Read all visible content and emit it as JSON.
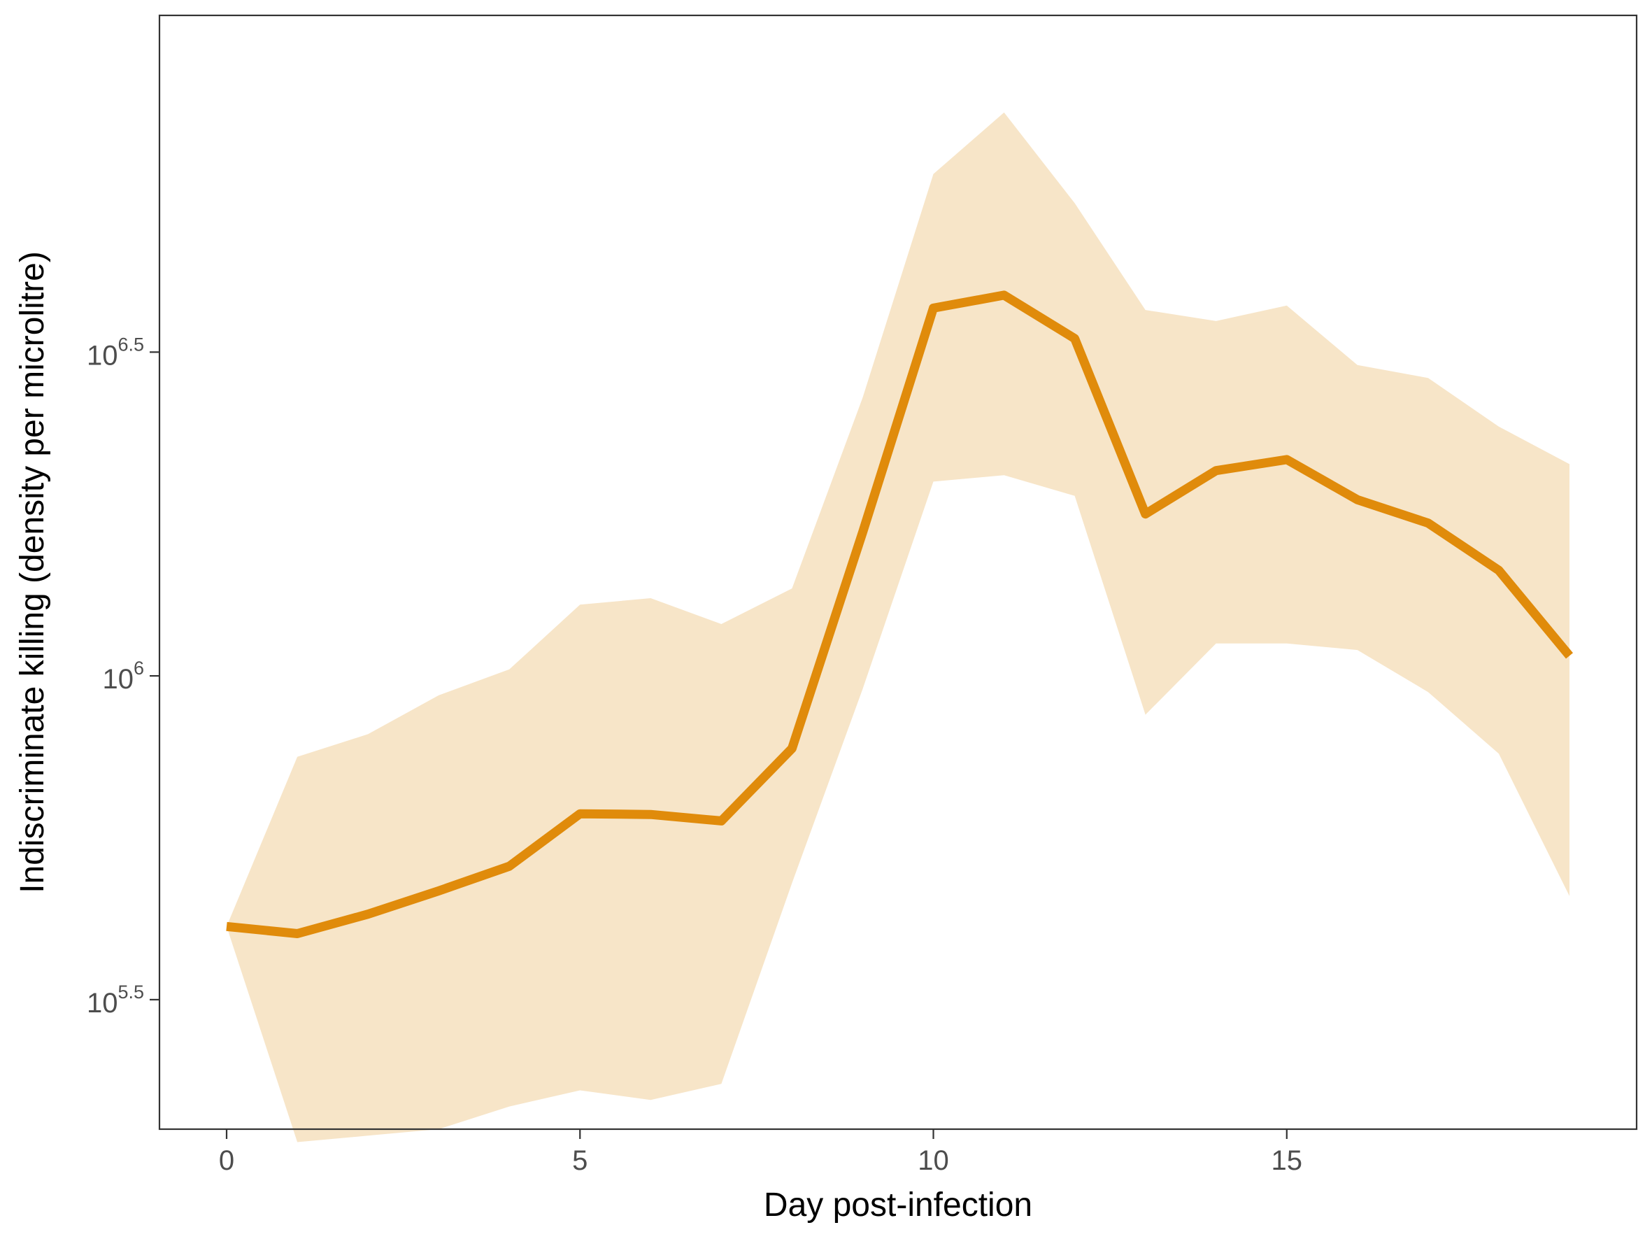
{
  "chart_data": {
    "type": "line",
    "title": "",
    "xlabel": "Day post-infection",
    "ylabel": "Indiscriminate killing (density per microlitre)",
    "y_scale": "log10",
    "xlim": [
      -0.95,
      19.95
    ],
    "ylim_log10": [
      5.3,
      7.02
    ],
    "x_ticks": [
      0,
      5,
      10,
      15
    ],
    "y_ticks": [
      {
        "log10": 5.5,
        "base": "10",
        "exponent": "5.5"
      },
      {
        "log10": 6.0,
        "base": "10",
        "exponent": "6"
      },
      {
        "log10": 6.5,
        "base": "10",
        "exponent": "6.5"
      }
    ],
    "grid": false,
    "colors": {
      "line": "#e08b0b",
      "ribbon": "#f7e5c8",
      "axis": "#333333"
    },
    "series": [
      {
        "x": [
          0,
          1,
          2,
          3,
          4,
          5,
          6,
          7,
          8,
          9,
          10,
          11,
          12,
          13,
          14,
          15,
          16,
          17,
          18,
          19
        ],
        "y_log10": [
          5.613,
          5.602,
          5.632,
          5.668,
          5.706,
          5.787,
          5.786,
          5.776,
          5.888,
          6.222,
          6.568,
          6.588,
          6.521,
          6.25,
          6.317,
          6.334,
          6.272,
          6.236,
          6.163,
          6.031
        ],
        "ribbon_low_log10": [
          5.613,
          5.28,
          5.29,
          5.3,
          5.335,
          5.36,
          5.345,
          5.37,
          5.68,
          5.98,
          6.3,
          6.31,
          6.278,
          5.94,
          6.05,
          6.05,
          6.04,
          5.975,
          5.88,
          5.66
        ],
        "ribbon_high_log10": [
          5.613,
          5.875,
          5.91,
          5.97,
          6.01,
          6.11,
          6.12,
          6.08,
          6.135,
          6.43,
          6.775,
          6.87,
          6.73,
          6.565,
          6.548,
          6.572,
          6.48,
          6.46,
          6.385,
          6.327
        ]
      }
    ]
  }
}
